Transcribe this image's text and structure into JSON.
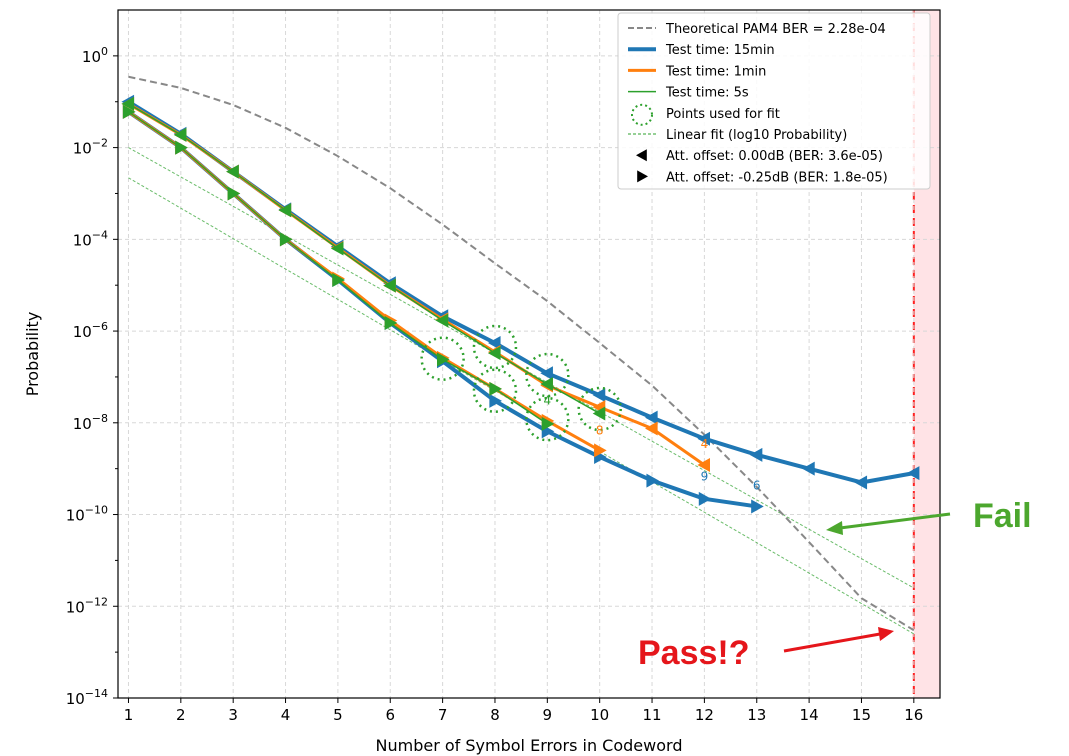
{
  "chart_data": {
    "type": "line",
    "title": "",
    "xlabel": "Number of Symbol Errors in Codeword",
    "ylabel": "Probability",
    "xlim": [
      0.8,
      16.5
    ],
    "ylim_log10": [
      -14,
      1
    ],
    "y_scale": "log",
    "grid": true,
    "x_ticks": [
      "1",
      "2",
      "3",
      "4",
      "5",
      "6",
      "7",
      "8",
      "9",
      "10",
      "11",
      "12",
      "13",
      "14",
      "15",
      "16"
    ],
    "legend_position": "top-right",
    "legend": [
      "Theoretical PAM4 BER = 2.28e-04",
      "Test time: 15min",
      "Test time: 1min",
      "Test time: 5s",
      "Points used for fit",
      "Linear fit (log10 Probability)",
      "Att. offset: 0.00dB (BER: 3.6e-05)",
      "Att. offset: -0.25dB (BER: 1.8e-05)"
    ],
    "colors": {
      "theory": "#888888",
      "t15min": "#1f77b4",
      "t1min": "#ff7f0e",
      "t5s": "#2ca02c",
      "fit": "#2ca02c",
      "limit": "#ff2020",
      "limit_fill": "#ffe3e6"
    },
    "theoretical": {
      "x": [
        1,
        2,
        3,
        4,
        5,
        6,
        7,
        8,
        9,
        10,
        11,
        12,
        13,
        14,
        15,
        16
      ],
      "y": [
        0.35,
        0.2,
        0.085,
        0.027,
        0.0065,
        0.0013,
        0.00021,
        3e-05,
        4.5e-06,
        5.5e-07,
        6.5e-08,
        5.5e-09,
        4e-10,
        2.5e-11,
        1.5e-12,
        3e-13
      ]
    },
    "limit_x": 16,
    "series": [
      {
        "name": "Test time: 15min",
        "offset": "Att. offset: 0.00dB (BER: 3.6e-05)",
        "marker": "left",
        "color": "#1f77b4",
        "width": 4,
        "x": [
          1,
          2,
          3,
          4,
          5,
          6,
          7,
          8,
          9,
          10,
          11,
          12,
          13,
          14,
          15,
          16
        ],
        "y": [
          0.1,
          0.02,
          0.003,
          0.00045,
          7e-05,
          1.1e-05,
          2.1e-06,
          5.5e-07,
          1.2e-07,
          4e-08,
          1.3e-08,
          4.5e-09,
          2e-09,
          1e-09,
          5e-10,
          8e-10
        ]
      },
      {
        "name": "Test time: 15min",
        "offset": "Att. offset: -0.25dB (BER: 1.8e-05)",
        "marker": "right",
        "color": "#1f77b4",
        "width": 4,
        "x": [
          1,
          2,
          3,
          4,
          5,
          6,
          7,
          8,
          9,
          10,
          11,
          12,
          13
        ],
        "y": [
          0.06,
          0.01,
          0.001,
          0.0001,
          1.3e-05,
          1.5e-06,
          2.2e-07,
          3e-08,
          6.5e-09,
          1.8e-09,
          5.5e-10,
          2.2e-10,
          1.5e-10
        ]
      },
      {
        "name": "Test time: 1min",
        "offset": "Att. offset: 0.00dB (BER: 3.6e-05)",
        "marker": "left",
        "color": "#ff7f0e",
        "width": 3,
        "x": [
          1,
          2,
          3,
          4,
          5,
          6,
          7,
          8,
          9,
          10,
          11,
          12
        ],
        "y": [
          0.09,
          0.019,
          0.003,
          0.00043,
          6.5e-05,
          9.8e-06,
          1.8e-06,
          3.5e-07,
          6.5e-08,
          2.2e-08,
          7.5e-09,
          1.2e-09
        ]
      },
      {
        "name": "Test time: 1min",
        "offset": "Att. offset: -0.25dB (BER: 1.8e-05)",
        "marker": "right",
        "color": "#ff7f0e",
        "width": 3,
        "x": [
          1,
          2,
          3,
          4,
          5,
          6,
          7,
          8,
          9,
          10
        ],
        "y": [
          0.06,
          0.01,
          0.001,
          0.0001,
          1.4e-05,
          1.7e-06,
          2.6e-07,
          5.5e-08,
          1.1e-08,
          2.5e-09
        ]
      },
      {
        "name": "Test time: 5s",
        "offset": "Att. offset: 0.00dB (BER: 3.6e-05)",
        "marker": "left",
        "color": "#2ca02c",
        "width": 1.5,
        "x": [
          1,
          2,
          3,
          4,
          5,
          6,
          7,
          8,
          9,
          10
        ],
        "y": [
          0.09,
          0.019,
          0.003,
          0.00043,
          6.3e-05,
          9.8e-06,
          1.7e-06,
          3.3e-07,
          7e-08,
          1.6e-08
        ]
      },
      {
        "name": "Test time: 5s",
        "offset": "Att. offset: -0.25dB (BER: 1.8e-05)",
        "marker": "right",
        "color": "#2ca02c",
        "width": 1.5,
        "x": [
          1,
          2,
          3,
          4,
          5,
          6,
          7,
          8,
          9
        ],
        "y": [
          0.06,
          0.01,
          0.001,
          0.0001,
          1.3e-05,
          1.5e-06,
          2.4e-07,
          5.5e-08,
          9.5e-09
        ]
      }
    ],
    "fit_points": {
      "x": [
        7,
        8,
        8,
        9,
        9,
        10
      ],
      "y": [
        2.5e-07,
        4.5e-07,
        5e-08,
        1.1e-07,
        1.2e-08,
        2e-08
      ]
    },
    "fit_lines": [
      {
        "x": [
          1,
          16
        ],
        "y": [
          0.01,
          2.5e-12
        ]
      },
      {
        "x": [
          1,
          16
        ],
        "y": [
          0.0022,
          2.5e-13
        ]
      }
    ],
    "point_labels": [
      {
        "text": "4",
        "x": 9,
        "y": 2.5e-08,
        "color": "#2ca02c"
      },
      {
        "text": "8",
        "x": 10,
        "y": 5.5e-09,
        "color": "#ff7f0e"
      },
      {
        "text": "4",
        "x": 12,
        "y": 2.8e-09,
        "color": "#ff7f0e"
      },
      {
        "text": "9",
        "x": 12,
        "y": 5.5e-10,
        "color": "#1f77b4"
      },
      {
        "text": "6",
        "x": 13,
        "y": 3.5e-10,
        "color": "#1f77b4"
      }
    ]
  },
  "annotations": {
    "fail": {
      "text": "Fail",
      "color": "#4ca72e"
    },
    "pass": {
      "text": "Pass!?",
      "color": "#e5161b"
    }
  }
}
